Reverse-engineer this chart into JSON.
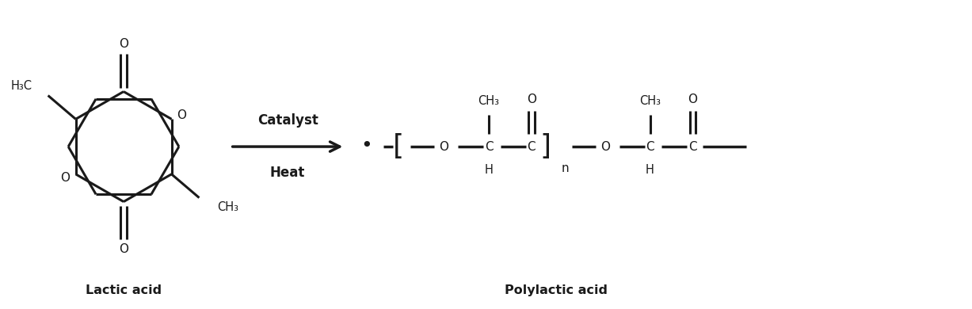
{
  "background_color": "#ffffff",
  "line_color": "#1a1a1a",
  "text_color": "#1a1a1a",
  "label_lactic": "Lactic acid",
  "label_poly": "Polylactic acid",
  "arrow_label_top": "Catalyst",
  "arrow_label_bot": "Heat",
  "figsize": [
    12.27,
    3.9
  ],
  "dpi": 100
}
